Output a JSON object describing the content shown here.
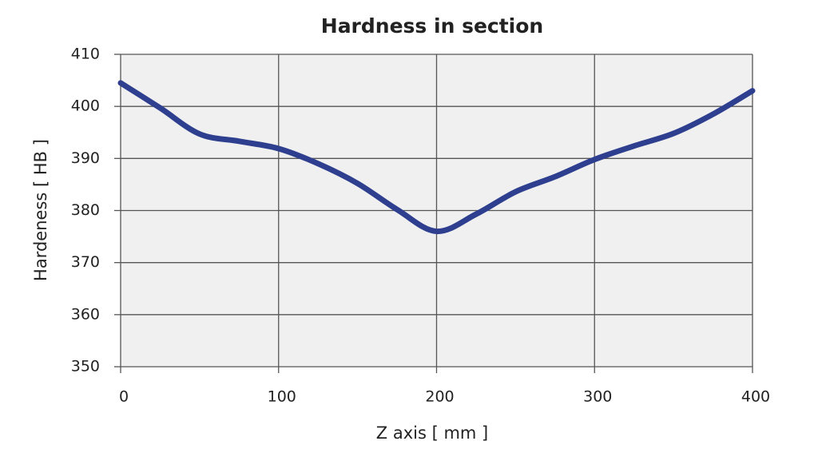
{
  "chart_data": {
    "type": "line",
    "title": "Hardness in section",
    "x_label": "Z axis [ mm ]",
    "y_label": "Hardeness [ HB ]",
    "x": [
      0,
      25,
      50,
      75,
      100,
      125,
      150,
      175,
      200,
      225,
      250,
      275,
      300,
      325,
      350,
      375,
      400
    ],
    "series": [
      {
        "name": "Hardness",
        "color": "#2e3f8f",
        "values": [
          404.5,
          399.7,
          394.7,
          393.3,
          391.9,
          389,
          385.2,
          380.2,
          376,
          379.3,
          383.6,
          386.5,
          389.8,
          392.4,
          394.8,
          398.5,
          403
        ]
      }
    ],
    "xlim": [
      0,
      400
    ],
    "xticks": [
      0,
      100,
      200,
      300,
      400
    ],
    "ylim": [
      350,
      410
    ],
    "yticks": [
      350,
      360,
      370,
      380,
      390,
      400,
      410
    ],
    "grid": true,
    "smooth": true
  }
}
